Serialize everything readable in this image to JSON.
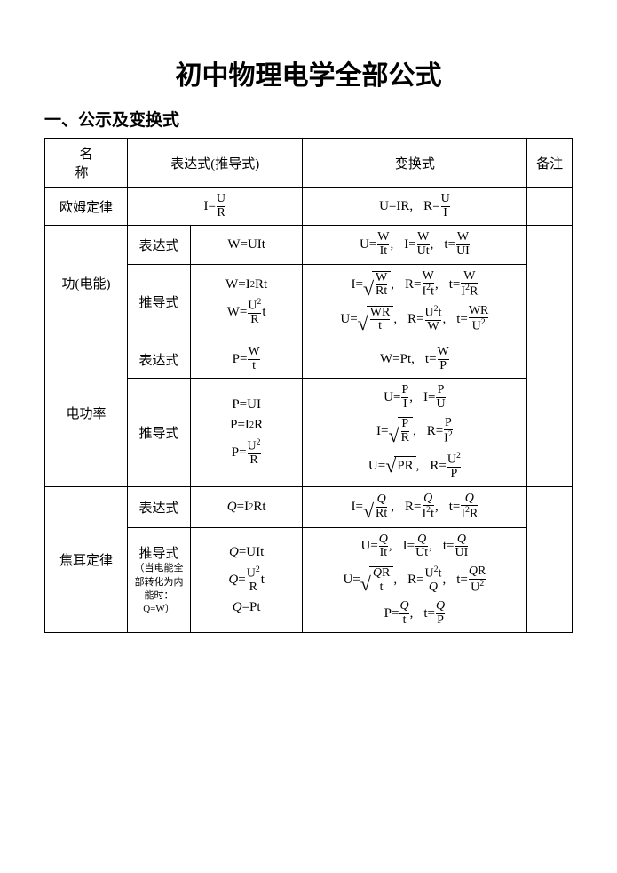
{
  "title": "初中物理电学全部公式",
  "subtitle": "一、公示及变换式",
  "headers": {
    "name": "名　称",
    "expr": "表达式(推导式)",
    "trans": "变换式",
    "note": "备注"
  },
  "labels": {
    "biaoda": "表达式",
    "tuidao": "推导式"
  },
  "rows": {
    "ohm": {
      "name": "欧姆定律"
    },
    "work": {
      "name": "功(电能)"
    },
    "power": {
      "name": "电功率"
    },
    "joule": {
      "name": "焦耳定律",
      "subnote": "（当电能全部转化为内能时：Q=W）"
    }
  },
  "style": {
    "bg": "#ffffff",
    "fg": "#000000",
    "border": "#000000",
    "title_fontsize": 30,
    "subtitle_fontsize": 19,
    "cell_fontsize": 15
  }
}
